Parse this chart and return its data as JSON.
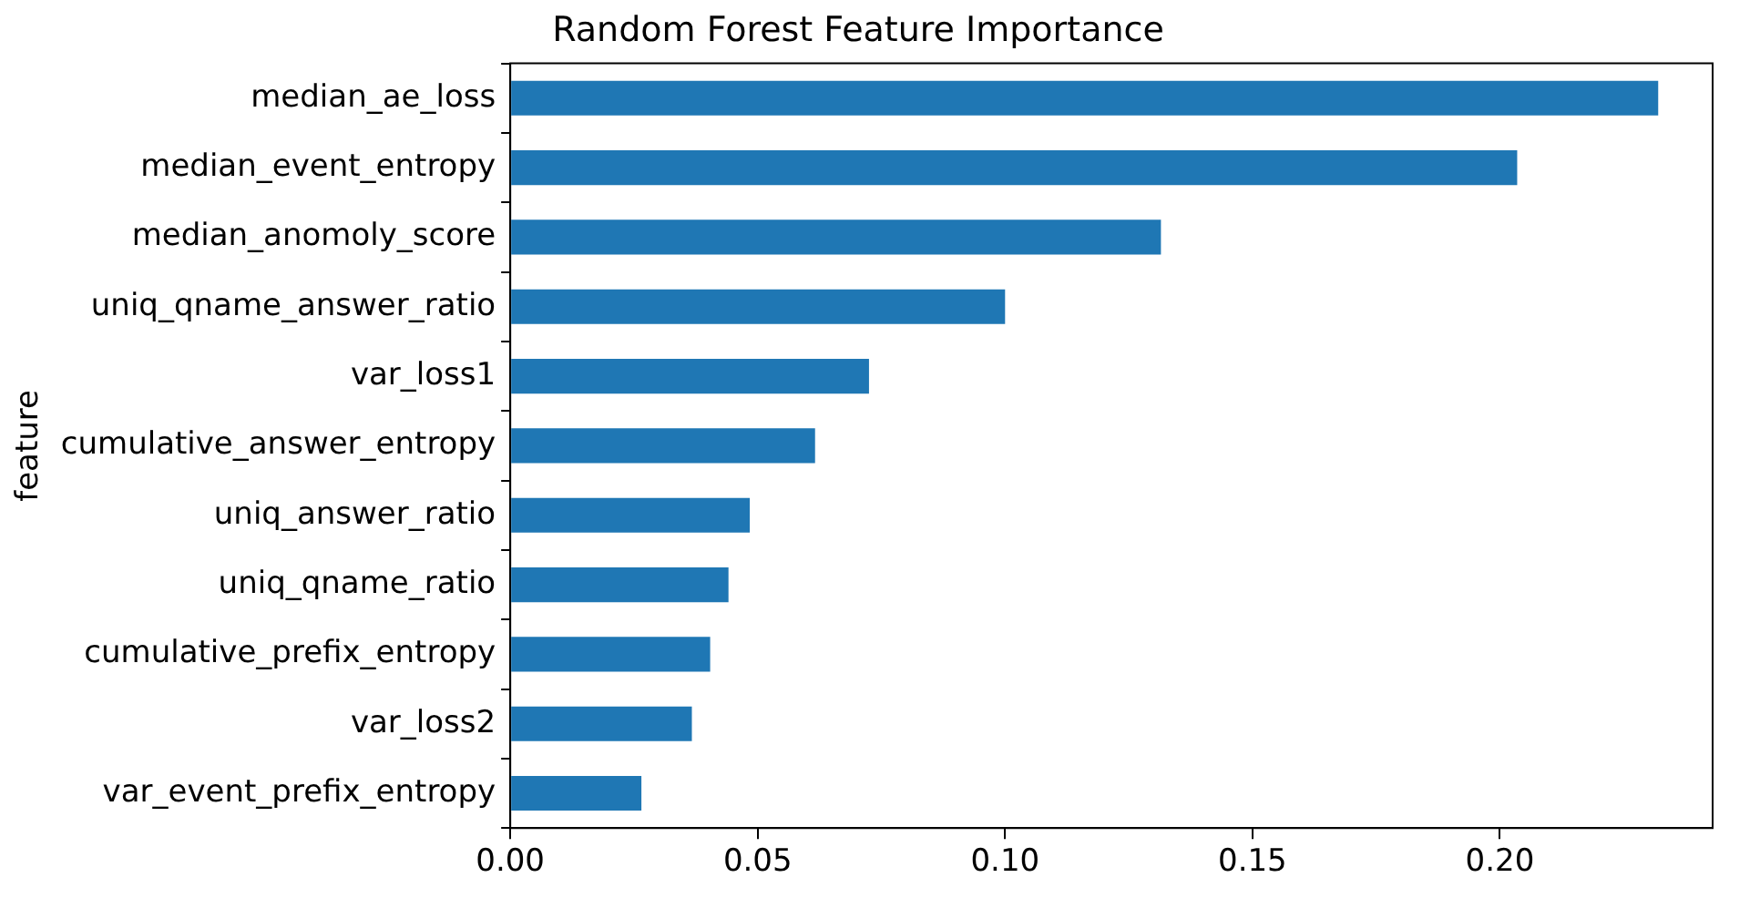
{
  "chart_data": {
    "type": "bar",
    "orientation": "horizontal",
    "title": "Random Forest Feature Importance",
    "ylabel": "feature",
    "categories": [
      "median_ae_loss",
      "median_event_entropy",
      "median_anomoly_score",
      "uniq_qname_answer_ratio",
      "var_loss1",
      "cumulative_answer_entropy",
      "uniq_answer_ratio",
      "uniq_qname_ratio",
      "cumulative_prefix_entropy",
      "var_loss2",
      "var_event_prefix_entropy"
    ],
    "values": [
      0.232,
      0.2035,
      0.1315,
      0.1,
      0.0725,
      0.0616,
      0.0484,
      0.0441,
      0.0404,
      0.0367,
      0.0265
    ],
    "color": "#1f77b4",
    "xlim": [
      0,
      0.243
    ],
    "xticks": [
      {
        "value": 0,
        "label": "0.00"
      },
      {
        "value": 0.05,
        "label": "0.05"
      },
      {
        "value": 0.1,
        "label": "0.10"
      },
      {
        "value": 0.15,
        "label": "0.15"
      },
      {
        "value": 0.2,
        "label": "0.20"
      }
    ],
    "grid": false,
    "legend": false
  }
}
